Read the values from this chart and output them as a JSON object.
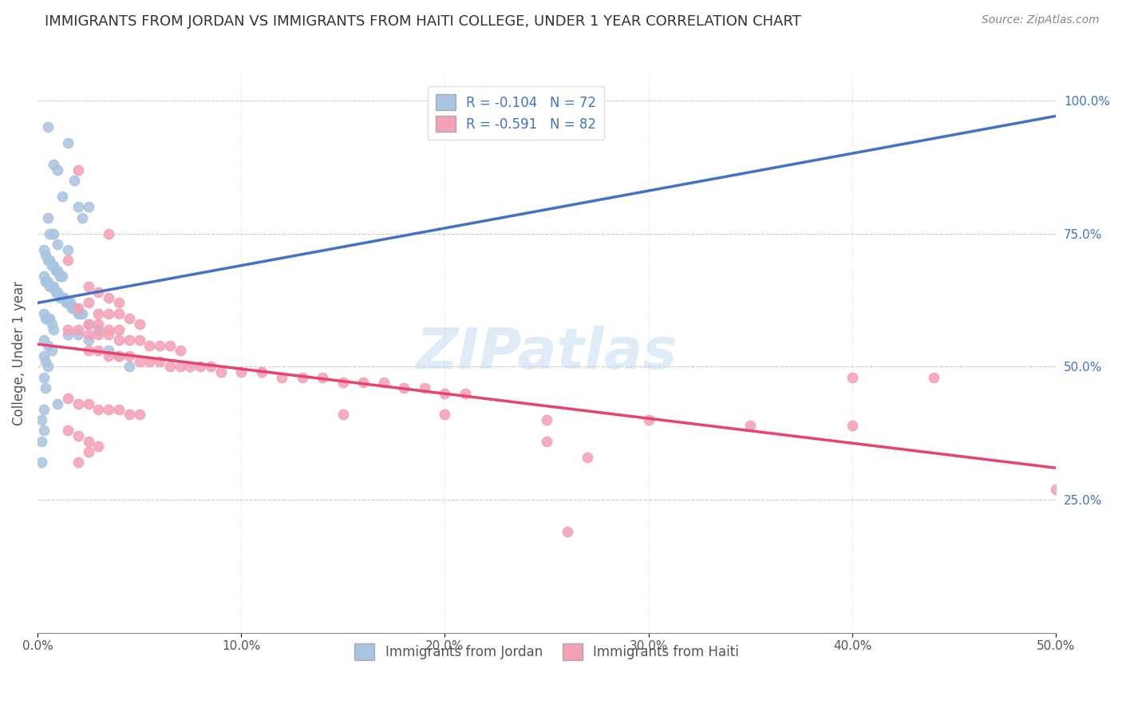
{
  "title": "IMMIGRANTS FROM JORDAN VS IMMIGRANTS FROM HAITI COLLEGE, UNDER 1 YEAR CORRELATION CHART",
  "source": "Source: ZipAtlas.com",
  "xlabel_bottom": "",
  "ylabel": "College, Under 1 year",
  "x_ticks": [
    0.0,
    0.1,
    0.2,
    0.3,
    0.4,
    0.5
  ],
  "x_tick_labels": [
    "0.0%",
    "10.0%",
    "20.0%",
    "30.0%",
    "40.0%",
    "50.0%"
  ],
  "y_ticks_right": [
    0.25,
    0.5,
    0.75,
    1.0
  ],
  "y_tick_labels_right": [
    "25.0%",
    "50.0%",
    "75.0%",
    "100.0%"
  ],
  "xlim": [
    0.0,
    0.5
  ],
  "ylim": [
    0.0,
    1.05
  ],
  "jordan_R": -0.104,
  "jordan_N": 72,
  "haiti_R": -0.591,
  "haiti_N": 82,
  "jordan_color": "#a8c4e0",
  "haiti_color": "#f4a0b5",
  "jordan_line_color": "#4472c4",
  "haiti_line_color": "#e8436e",
  "jordan_trendline_color": "#7ab0d8",
  "watermark": "ZIPatlas",
  "watermark_color": "#c0d8f0",
  "legend_jordan_label": "Immigrants from Jordan",
  "legend_haiti_label": "Immigrants from Haiti",
  "jordan_scatter": [
    [
      0.005,
      0.95
    ],
    [
      0.008,
      0.88
    ],
    [
      0.01,
      0.87
    ],
    [
      0.012,
      0.82
    ],
    [
      0.015,
      0.92
    ],
    [
      0.018,
      0.85
    ],
    [
      0.02,
      0.8
    ],
    [
      0.022,
      0.78
    ],
    [
      0.025,
      0.8
    ],
    [
      0.005,
      0.78
    ],
    [
      0.006,
      0.75
    ],
    [
      0.008,
      0.75
    ],
    [
      0.01,
      0.73
    ],
    [
      0.015,
      0.72
    ],
    [
      0.003,
      0.72
    ],
    [
      0.004,
      0.71
    ],
    [
      0.005,
      0.7
    ],
    [
      0.006,
      0.7
    ],
    [
      0.007,
      0.69
    ],
    [
      0.008,
      0.69
    ],
    [
      0.009,
      0.68
    ],
    [
      0.01,
      0.68
    ],
    [
      0.011,
      0.67
    ],
    [
      0.012,
      0.67
    ],
    [
      0.003,
      0.67
    ],
    [
      0.004,
      0.66
    ],
    [
      0.005,
      0.66
    ],
    [
      0.006,
      0.65
    ],
    [
      0.007,
      0.65
    ],
    [
      0.008,
      0.65
    ],
    [
      0.009,
      0.64
    ],
    [
      0.01,
      0.64
    ],
    [
      0.011,
      0.63
    ],
    [
      0.012,
      0.63
    ],
    [
      0.013,
      0.63
    ],
    [
      0.014,
      0.62
    ],
    [
      0.015,
      0.62
    ],
    [
      0.016,
      0.62
    ],
    [
      0.017,
      0.61
    ],
    [
      0.018,
      0.61
    ],
    [
      0.019,
      0.61
    ],
    [
      0.02,
      0.6
    ],
    [
      0.021,
      0.6
    ],
    [
      0.022,
      0.6
    ],
    [
      0.003,
      0.6
    ],
    [
      0.004,
      0.59
    ],
    [
      0.005,
      0.59
    ],
    [
      0.006,
      0.59
    ],
    [
      0.007,
      0.58
    ],
    [
      0.025,
      0.58
    ],
    [
      0.008,
      0.57
    ],
    [
      0.03,
      0.57
    ],
    [
      0.015,
      0.56
    ],
    [
      0.02,
      0.56
    ],
    [
      0.025,
      0.55
    ],
    [
      0.003,
      0.55
    ],
    [
      0.005,
      0.54
    ],
    [
      0.007,
      0.53
    ],
    [
      0.035,
      0.53
    ],
    [
      0.04,
      0.52
    ],
    [
      0.003,
      0.52
    ],
    [
      0.004,
      0.51
    ],
    [
      0.005,
      0.5
    ],
    [
      0.045,
      0.5
    ],
    [
      0.003,
      0.48
    ],
    [
      0.004,
      0.46
    ],
    [
      0.01,
      0.43
    ],
    [
      0.003,
      0.42
    ],
    [
      0.002,
      0.4
    ],
    [
      0.003,
      0.38
    ],
    [
      0.002,
      0.36
    ],
    [
      0.002,
      0.32
    ]
  ],
  "haiti_scatter": [
    [
      0.02,
      0.87
    ],
    [
      0.035,
      0.75
    ],
    [
      0.015,
      0.7
    ],
    [
      0.025,
      0.65
    ],
    [
      0.03,
      0.64
    ],
    [
      0.035,
      0.63
    ],
    [
      0.04,
      0.62
    ],
    [
      0.025,
      0.62
    ],
    [
      0.02,
      0.61
    ],
    [
      0.03,
      0.6
    ],
    [
      0.035,
      0.6
    ],
    [
      0.04,
      0.6
    ],
    [
      0.045,
      0.59
    ],
    [
      0.05,
      0.58
    ],
    [
      0.025,
      0.58
    ],
    [
      0.03,
      0.58
    ],
    [
      0.035,
      0.57
    ],
    [
      0.04,
      0.57
    ],
    [
      0.015,
      0.57
    ],
    [
      0.02,
      0.57
    ],
    [
      0.025,
      0.56
    ],
    [
      0.03,
      0.56
    ],
    [
      0.035,
      0.56
    ],
    [
      0.04,
      0.55
    ],
    [
      0.045,
      0.55
    ],
    [
      0.05,
      0.55
    ],
    [
      0.055,
      0.54
    ],
    [
      0.06,
      0.54
    ],
    [
      0.065,
      0.54
    ],
    [
      0.07,
      0.53
    ],
    [
      0.025,
      0.53
    ],
    [
      0.03,
      0.53
    ],
    [
      0.035,
      0.52
    ],
    [
      0.04,
      0.52
    ],
    [
      0.045,
      0.52
    ],
    [
      0.05,
      0.51
    ],
    [
      0.055,
      0.51
    ],
    [
      0.06,
      0.51
    ],
    [
      0.065,
      0.5
    ],
    [
      0.07,
      0.5
    ],
    [
      0.075,
      0.5
    ],
    [
      0.08,
      0.5
    ],
    [
      0.085,
      0.5
    ],
    [
      0.09,
      0.49
    ],
    [
      0.1,
      0.49
    ],
    [
      0.11,
      0.49
    ],
    [
      0.12,
      0.48
    ],
    [
      0.13,
      0.48
    ],
    [
      0.14,
      0.48
    ],
    [
      0.15,
      0.47
    ],
    [
      0.16,
      0.47
    ],
    [
      0.17,
      0.47
    ],
    [
      0.18,
      0.46
    ],
    [
      0.19,
      0.46
    ],
    [
      0.2,
      0.45
    ],
    [
      0.21,
      0.45
    ],
    [
      0.015,
      0.44
    ],
    [
      0.02,
      0.43
    ],
    [
      0.025,
      0.43
    ],
    [
      0.03,
      0.42
    ],
    [
      0.035,
      0.42
    ],
    [
      0.04,
      0.42
    ],
    [
      0.045,
      0.41
    ],
    [
      0.05,
      0.41
    ],
    [
      0.15,
      0.41
    ],
    [
      0.2,
      0.41
    ],
    [
      0.25,
      0.4
    ],
    [
      0.3,
      0.4
    ],
    [
      0.35,
      0.39
    ],
    [
      0.4,
      0.39
    ],
    [
      0.015,
      0.38
    ],
    [
      0.02,
      0.37
    ],
    [
      0.025,
      0.36
    ],
    [
      0.03,
      0.35
    ],
    [
      0.025,
      0.34
    ],
    [
      0.02,
      0.32
    ],
    [
      0.4,
      0.48
    ],
    [
      0.44,
      0.48
    ],
    [
      0.25,
      0.36
    ],
    [
      0.27,
      0.33
    ],
    [
      0.5,
      0.27
    ],
    [
      0.26,
      0.19
    ]
  ]
}
